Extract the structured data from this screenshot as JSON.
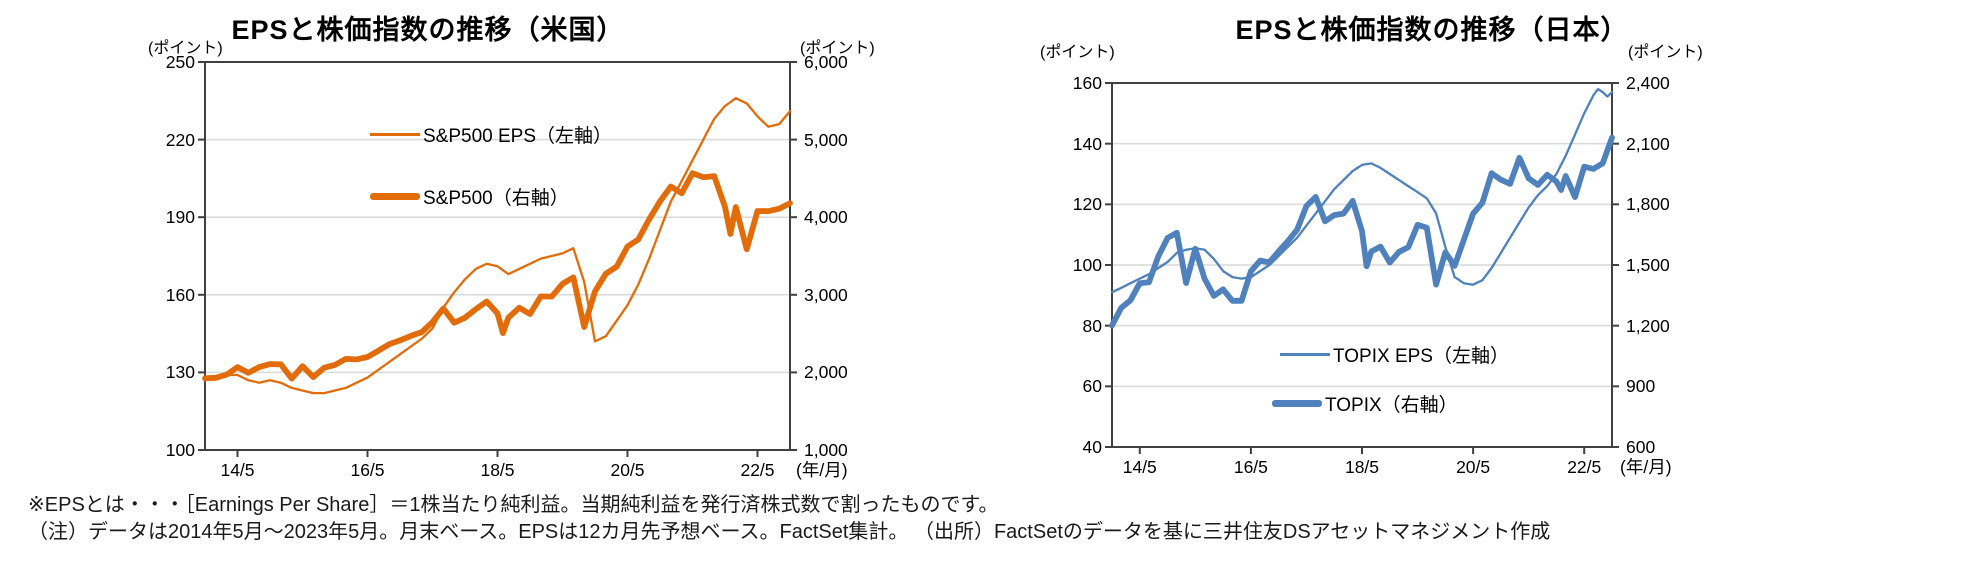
{
  "notes": {
    "line1": "※EPSとは・・・［Earnings Per Share］＝1株当たり純利益。当期純利益を発行済株式数で割ったものです。",
    "line2": "（注）データは2014年5月～2023年5月。月末ベース。EPSは12カ月先予想ベース。FactSet集計。 （出所）FactSetのデータを基に三井住友DSアセットマネジメント作成"
  },
  "colors": {
    "us_accent": "#E36C0A",
    "jp_accent": "#4F81BD",
    "gridline": "#D9D9D9",
    "frame": "#404040"
  },
  "chart_data": [
    {
      "type": "line",
      "title": "EPSと株価指数の推移（米国）",
      "left_axis": {
        "unit": "(ポイント)",
        "min": 100,
        "max": 250,
        "ticks": [
          100,
          130,
          160,
          190,
          220,
          250
        ],
        "labels": [
          "100",
          "130",
          "160",
          "190",
          "220",
          "250"
        ]
      },
      "right_axis": {
        "unit": "(ポイント)",
        "min": 1000,
        "max": 6000,
        "ticks": [
          1000,
          2000,
          3000,
          4000,
          5000,
          6000
        ],
        "labels": [
          "1,000",
          "2,000",
          "3,000",
          "4,000",
          "5,000",
          "6,000"
        ]
      },
      "x_axis": {
        "labels": [
          "14/5",
          "16/5",
          "18/5",
          "20/5",
          "22/5"
        ],
        "label_months": [
          6,
          30,
          54,
          78,
          102
        ],
        "total_months": 108,
        "suffix": "(年/月)"
      },
      "legend": [
        {
          "label": "S&P500 EPS（左軸）",
          "style": "thin"
        },
        {
          "label": "S&P500（右軸）",
          "style": "thick"
        }
      ],
      "series": [
        {
          "name": "S&P500 EPS",
          "axis": "left",
          "style": "thin",
          "color": "#E36C0A",
          "x": [
            0,
            2,
            4,
            6,
            8,
            10,
            12,
            14,
            16,
            18,
            20,
            22,
            24,
            26,
            28,
            30,
            32,
            34,
            36,
            38,
            40,
            42,
            44,
            46,
            48,
            50,
            52,
            54,
            56,
            58,
            60,
            62,
            64,
            66,
            68,
            70,
            72,
            74,
            76,
            78,
            80,
            82,
            84,
            86,
            88,
            90,
            92,
            94,
            96,
            98,
            100,
            102,
            104,
            106,
            108
          ],
          "y": [
            127,
            128,
            129,
            129,
            127,
            126,
            127,
            126,
            124,
            123,
            122,
            122,
            123,
            124,
            126,
            128,
            131,
            134,
            137,
            140,
            143,
            147,
            155,
            161,
            166,
            170,
            172,
            171,
            168,
            170,
            172,
            174,
            175,
            176,
            178,
            165,
            142,
            144,
            150,
            156,
            164,
            174,
            185,
            196,
            204,
            212,
            220,
            228,
            233,
            236,
            234,
            229,
            225,
            226,
            231
          ]
        },
        {
          "name": "S&P500",
          "axis": "right",
          "style": "thick",
          "color": "#E36C0A",
          "x": [
            0,
            2,
            4,
            6,
            8,
            10,
            12,
            14,
            16,
            18,
            20,
            22,
            24,
            26,
            28,
            30,
            32,
            34,
            36,
            38,
            40,
            42,
            44,
            46,
            48,
            50,
            52,
            54,
            55,
            56,
            58,
            60,
            62,
            64,
            66,
            68,
            70,
            72,
            74,
            76,
            78,
            80,
            82,
            84,
            86,
            88,
            90,
            92,
            94,
            96,
            97,
            98,
            100,
            102,
            104,
            106,
            108
          ],
          "y": [
            1924,
            1931,
            1972,
            2068,
            1995,
            2068,
            2107,
            2104,
            1920,
            2080,
            1940,
            2060,
            2097,
            2174,
            2168,
            2199,
            2279,
            2363,
            2412,
            2470,
            2519,
            2648,
            2824,
            2641,
            2705,
            2816,
            2914,
            2760,
            2507,
            2704,
            2834,
            2752,
            2980,
            2977,
            3141,
            3226,
            2585,
            3044,
            3271,
            3363,
            3622,
            3714,
            3973,
            4204,
            4395,
            4308,
            4567,
            4516,
            4530,
            4132,
            3785,
            4130,
            3586,
            4080,
            4077,
            4109,
            4180
          ]
        }
      ]
    },
    {
      "type": "line",
      "title": "EPSと株価指数の推移（日本）",
      "left_axis": {
        "unit": "(ポイント)",
        "min": 40,
        "max": 160,
        "ticks": [
          40,
          60,
          80,
          100,
          120,
          140,
          160
        ],
        "labels": [
          "40",
          "60",
          "80",
          "100",
          "120",
          "140",
          "160"
        ]
      },
      "right_axis": {
        "unit": "(ポイント)",
        "min": 600,
        "max": 2400,
        "ticks": [
          600,
          900,
          1200,
          1500,
          1800,
          2100,
          2400
        ],
        "labels": [
          "600",
          "900",
          "1,200",
          "1,500",
          "1,800",
          "2,100",
          "2,400"
        ]
      },
      "x_axis": {
        "labels": [
          "14/5",
          "16/5",
          "18/5",
          "20/5",
          "22/5"
        ],
        "label_months": [
          6,
          30,
          54,
          78,
          102
        ],
        "total_months": 108,
        "suffix": "(年/月)"
      },
      "legend": [
        {
          "label": "TOPIX EPS（左軸）",
          "style": "thin"
        },
        {
          "label": "TOPIX（右軸）",
          "style": "thick"
        }
      ],
      "series": [
        {
          "name": "TOPIX EPS",
          "axis": "left",
          "style": "thin",
          "color": "#4F81BD",
          "x": [
            0,
            2,
            4,
            6,
            8,
            10,
            12,
            14,
            16,
            18,
            20,
            22,
            24,
            26,
            28,
            30,
            32,
            34,
            36,
            38,
            40,
            42,
            44,
            46,
            48,
            50,
            52,
            54,
            56,
            58,
            60,
            62,
            64,
            66,
            68,
            70,
            72,
            74,
            76,
            78,
            80,
            82,
            84,
            86,
            88,
            90,
            92,
            94,
            96,
            98,
            100,
            102,
            104,
            105,
            106,
            107,
            108
          ],
          "y": [
            91,
            92.5,
            94,
            95.5,
            97,
            99,
            101,
            104,
            105,
            105.5,
            105,
            102,
            98,
            96,
            95.5,
            96,
            98,
            100,
            103,
            106,
            109,
            113,
            117,
            121,
            125,
            128,
            131,
            133,
            133.5,
            132,
            130,
            128,
            126,
            124,
            122,
            117,
            106,
            96,
            94,
            93.5,
            95,
            99,
            104,
            109,
            114,
            119,
            123,
            126,
            130,
            136,
            143,
            150,
            156,
            158,
            157,
            155.5,
            157
          ]
        },
        {
          "name": "TOPIX",
          "axis": "right",
          "style": "thick",
          "color": "#4F81BD",
          "x": [
            0,
            2,
            4,
            6,
            8,
            10,
            12,
            14,
            16,
            18,
            20,
            22,
            24,
            26,
            28,
            30,
            32,
            34,
            36,
            38,
            40,
            42,
            44,
            46,
            48,
            50,
            52,
            54,
            55,
            56,
            58,
            60,
            62,
            64,
            66,
            68,
            70,
            72,
            74,
            76,
            78,
            80,
            82,
            84,
            86,
            88,
            90,
            92,
            94,
            96,
            97,
            98,
            100,
            102,
            104,
            106,
            108
          ],
          "y": [
            1201,
            1289,
            1326,
            1410,
            1415,
            1543,
            1634,
            1659,
            1411,
            1580,
            1432,
            1347,
            1380,
            1323,
            1323,
            1469,
            1522,
            1513,
            1568,
            1618,
            1675,
            1792,
            1837,
            1716,
            1747,
            1754,
            1817,
            1667,
            1494,
            1567,
            1591,
            1512,
            1565,
            1588,
            1699,
            1684,
            1403,
            1563,
            1496,
            1625,
            1754,
            1808,
            1954,
            1922,
            1901,
            2030,
            1928,
            1896,
            1946,
            1913,
            1871,
            1940,
            1836,
            1986,
            1975,
            2003,
            2130
          ]
        }
      ]
    }
  ]
}
